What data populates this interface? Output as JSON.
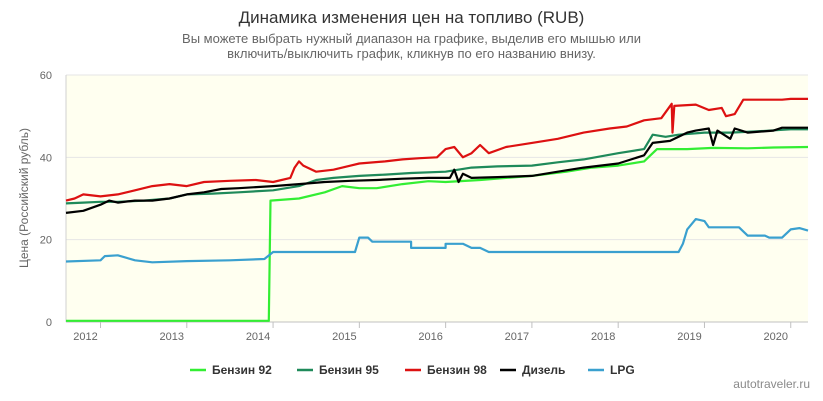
{
  "chart_data": {
    "type": "line",
    "title": "Динамика изменения цен на топливо (RUB)",
    "subtitle_lines": [
      "Вы можете выбрать нужный диапазон на графике, выделив его мышью или",
      "включить/выключить график, кликнув по его названию внизу."
    ],
    "ylabel": "Цена (Российский рубль)",
    "xlabel": "",
    "xlim": [
      2011.6,
      2020.2
    ],
    "ylim": [
      0,
      60
    ],
    "y_ticks": [
      "0",
      "20",
      "40",
      "60"
    ],
    "x_ticks": [
      "2012",
      "2013",
      "2014",
      "2015",
      "2016",
      "2017",
      "2018",
      "2019",
      "2020"
    ],
    "grid": "horizontal",
    "legend_position": "bottom",
    "credit": "autotraveler.ru",
    "series": [
      {
        "name": "Бензин 92",
        "color": "#33ee33",
        "points": [
          [
            2011.6,
            0.3
          ],
          [
            2013.95,
            0.3
          ],
          [
            2013.97,
            29.5
          ],
          [
            2014.3,
            30
          ],
          [
            2014.6,
            31.5
          ],
          [
            2014.8,
            33
          ],
          [
            2015.0,
            32.5
          ],
          [
            2015.2,
            32.5
          ],
          [
            2015.5,
            33.5
          ],
          [
            2015.8,
            34.2
          ],
          [
            2016.0,
            34
          ],
          [
            2016.4,
            34.5
          ],
          [
            2016.7,
            35
          ],
          [
            2017.0,
            35.5
          ],
          [
            2017.4,
            36.5
          ],
          [
            2017.7,
            37.5
          ],
          [
            2018.0,
            38
          ],
          [
            2018.3,
            39
          ],
          [
            2018.45,
            42
          ],
          [
            2018.8,
            42
          ],
          [
            2019.1,
            42.3
          ],
          [
            2019.5,
            42.2
          ],
          [
            2019.8,
            42.4
          ],
          [
            2020.2,
            42.5
          ]
        ]
      },
      {
        "name": "Бензин 95",
        "color": "#1f8a5a",
        "points": [
          [
            2011.6,
            28.8
          ],
          [
            2011.8,
            29
          ],
          [
            2012.0,
            29.2
          ],
          [
            2012.2,
            29.2
          ],
          [
            2012.5,
            29.5
          ],
          [
            2012.8,
            30
          ],
          [
            2013.0,
            31
          ],
          [
            2013.3,
            31.2
          ],
          [
            2013.6,
            31.5
          ],
          [
            2014.0,
            32
          ],
          [
            2014.3,
            33
          ],
          [
            2014.5,
            34.5
          ],
          [
            2014.7,
            35
          ],
          [
            2015.0,
            35.5
          ],
          [
            2015.3,
            35.8
          ],
          [
            2015.6,
            36.2
          ],
          [
            2016.0,
            36.5
          ],
          [
            2016.3,
            37.5
          ],
          [
            2016.6,
            37.8
          ],
          [
            2017.0,
            38
          ],
          [
            2017.3,
            38.8
          ],
          [
            2017.6,
            39.5
          ],
          [
            2018.0,
            41
          ],
          [
            2018.3,
            42
          ],
          [
            2018.4,
            45.5
          ],
          [
            2018.55,
            45
          ],
          [
            2018.7,
            45.5
          ],
          [
            2019.0,
            46
          ],
          [
            2019.3,
            46
          ],
          [
            2019.6,
            46.3
          ],
          [
            2020.0,
            46.8
          ],
          [
            2020.2,
            46.8
          ]
        ]
      },
      {
        "name": "Бензин 98",
        "color": "#dd1111",
        "points": [
          [
            2011.6,
            29.5
          ],
          [
            2011.7,
            30
          ],
          [
            2011.8,
            31
          ],
          [
            2012.0,
            30.5
          ],
          [
            2012.2,
            31
          ],
          [
            2012.4,
            32
          ],
          [
            2012.6,
            33
          ],
          [
            2012.8,
            33.5
          ],
          [
            2013.0,
            33
          ],
          [
            2013.2,
            34
          ],
          [
            2013.5,
            34.3
          ],
          [
            2013.8,
            34.5
          ],
          [
            2014.0,
            34
          ],
          [
            2014.2,
            35
          ],
          [
            2014.25,
            37.5
          ],
          [
            2014.3,
            39
          ],
          [
            2014.35,
            38
          ],
          [
            2014.5,
            36.5
          ],
          [
            2014.7,
            37
          ],
          [
            2014.9,
            38
          ],
          [
            2015.0,
            38.5
          ],
          [
            2015.3,
            39
          ],
          [
            2015.5,
            39.5
          ],
          [
            2015.7,
            39.8
          ],
          [
            2015.9,
            40
          ],
          [
            2016.0,
            42
          ],
          [
            2016.1,
            42.5
          ],
          [
            2016.2,
            40
          ],
          [
            2016.3,
            41
          ],
          [
            2016.4,
            43
          ],
          [
            2016.5,
            41
          ],
          [
            2016.7,
            42.5
          ],
          [
            2017.0,
            43.5
          ],
          [
            2017.3,
            44.5
          ],
          [
            2017.6,
            46
          ],
          [
            2017.9,
            47
          ],
          [
            2018.1,
            47.5
          ],
          [
            2018.3,
            49
          ],
          [
            2018.5,
            49.5
          ],
          [
            2018.62,
            53
          ],
          [
            2018.63,
            46
          ],
          [
            2018.65,
            52.5
          ],
          [
            2018.9,
            52.8
          ],
          [
            2019.05,
            51.5
          ],
          [
            2019.2,
            52
          ],
          [
            2019.25,
            50
          ],
          [
            2019.35,
            50.5
          ],
          [
            2019.45,
            54
          ],
          [
            2019.7,
            54
          ],
          [
            2019.9,
            54
          ],
          [
            2020.0,
            54.2
          ],
          [
            2020.2,
            54.2
          ]
        ]
      },
      {
        "name": "Дизель",
        "color": "#000000",
        "points": [
          [
            2011.6,
            26.5
          ],
          [
            2011.8,
            27
          ],
          [
            2012.0,
            28.5
          ],
          [
            2012.1,
            29.5
          ],
          [
            2012.2,
            29
          ],
          [
            2012.4,
            29.5
          ],
          [
            2012.6,
            29.5
          ],
          [
            2012.8,
            30
          ],
          [
            2013.0,
            31
          ],
          [
            2013.2,
            31.5
          ],
          [
            2013.4,
            32.3
          ],
          [
            2013.6,
            32.5
          ],
          [
            2014.0,
            33
          ],
          [
            2014.3,
            33.5
          ],
          [
            2014.6,
            34
          ],
          [
            2014.9,
            34.3
          ],
          [
            2015.2,
            34.5
          ],
          [
            2015.5,
            34.8
          ],
          [
            2015.8,
            35
          ],
          [
            2016.05,
            35
          ],
          [
            2016.1,
            37
          ],
          [
            2016.15,
            34
          ],
          [
            2016.2,
            36
          ],
          [
            2016.3,
            35
          ],
          [
            2016.6,
            35.2
          ],
          [
            2017.0,
            35.5
          ],
          [
            2017.3,
            36.5
          ],
          [
            2017.6,
            37.5
          ],
          [
            2018.0,
            38.5
          ],
          [
            2018.3,
            40.5
          ],
          [
            2018.4,
            43.5
          ],
          [
            2018.6,
            44
          ],
          [
            2018.8,
            46
          ],
          [
            2018.9,
            46.5
          ],
          [
            2019.05,
            47
          ],
          [
            2019.1,
            43
          ],
          [
            2019.15,
            46.5
          ],
          [
            2019.3,
            44.5
          ],
          [
            2019.35,
            47
          ],
          [
            2019.5,
            46
          ],
          [
            2019.8,
            46.5
          ],
          [
            2019.9,
            47.2
          ],
          [
            2020.2,
            47.2
          ]
        ]
      },
      {
        "name": "LPG",
        "color": "#3aa0cf",
        "points": [
          [
            2011.6,
            14.7
          ],
          [
            2012.0,
            15
          ],
          [
            2012.05,
            16
          ],
          [
            2012.2,
            16.2
          ],
          [
            2012.4,
            15
          ],
          [
            2012.6,
            14.5
          ],
          [
            2013.0,
            14.8
          ],
          [
            2013.5,
            15
          ],
          [
            2013.9,
            15.3
          ],
          [
            2014.0,
            17
          ],
          [
            2014.3,
            17
          ],
          [
            2014.8,
            17
          ],
          [
            2014.95,
            17
          ],
          [
            2015.0,
            20.5
          ],
          [
            2015.1,
            20.5
          ],
          [
            2015.15,
            19.5
          ],
          [
            2015.6,
            19.5
          ],
          [
            2015.6,
            18
          ],
          [
            2016.0,
            18
          ],
          [
            2016.0,
            19
          ],
          [
            2016.2,
            19
          ],
          [
            2016.3,
            18
          ],
          [
            2016.4,
            18
          ],
          [
            2016.5,
            17
          ],
          [
            2017.0,
            17
          ],
          [
            2017.6,
            17
          ],
          [
            2018.0,
            17
          ],
          [
            2018.4,
            17
          ],
          [
            2018.7,
            17
          ],
          [
            2018.75,
            19
          ],
          [
            2018.8,
            22.5
          ],
          [
            2018.9,
            25
          ],
          [
            2019.0,
            24.5
          ],
          [
            2019.05,
            23
          ],
          [
            2019.4,
            23
          ],
          [
            2019.5,
            21
          ],
          [
            2019.7,
            21
          ],
          [
            2019.75,
            20.5
          ],
          [
            2019.9,
            20.5
          ],
          [
            2020.0,
            22.5
          ],
          [
            2020.1,
            22.8
          ],
          [
            2020.2,
            22.2
          ]
        ]
      }
    ]
  }
}
